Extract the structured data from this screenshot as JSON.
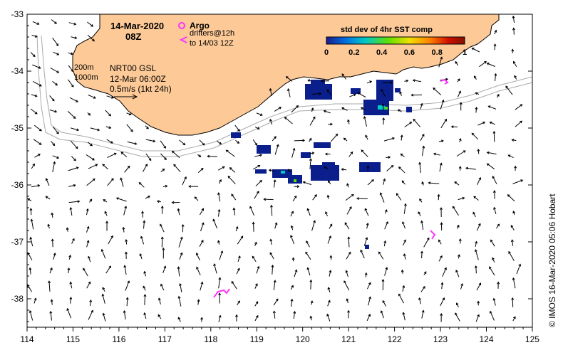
{
  "map": {
    "lon_range": [
      114,
      125
    ],
    "lat_range": [
      -38.5,
      -33
    ],
    "x_ticks": [
      "114",
      "115",
      "116",
      "117",
      "118",
      "119",
      "120",
      "121",
      "122",
      "123",
      "124",
      "125"
    ],
    "y_ticks": [
      "-33",
      "-34",
      "-35",
      "-36",
      "-37",
      "-38"
    ],
    "colors": {
      "land": "#fcc997",
      "coast": "#000000",
      "contours": "#aaaaaa",
      "argo": "#ff33ff",
      "drifter": "#ff33ff",
      "sst_fill": "#0a1f8c"
    }
  },
  "header": {
    "date": "14-Mar-2020",
    "time": "08Z"
  },
  "legend": {
    "argo_label": "Argo",
    "drifter_label_1": "drifters@12h",
    "drifter_label_2": "to 14/03 12Z"
  },
  "colorbar": {
    "title": "std dev of 4hr SST comp",
    "ticks": [
      "0",
      "0.2",
      "0.4",
      "0.6",
      "0.8",
      "1"
    ],
    "colors": [
      "#1a1a8c",
      "#0070e0",
      "#00c8c8",
      "#60e000",
      "#f0e000",
      "#ff8000",
      "#d01000",
      "#801000"
    ]
  },
  "annotations": {
    "contour_200": "200m",
    "contour_1000": "1000m",
    "product": "NRT00 GSL",
    "product_time": "12-Mar 06:00Z",
    "scale": "0.5m/s (1kt 24h)"
  },
  "credit": "© IMOS 16-Mar-2020 05:06 Hobart"
}
